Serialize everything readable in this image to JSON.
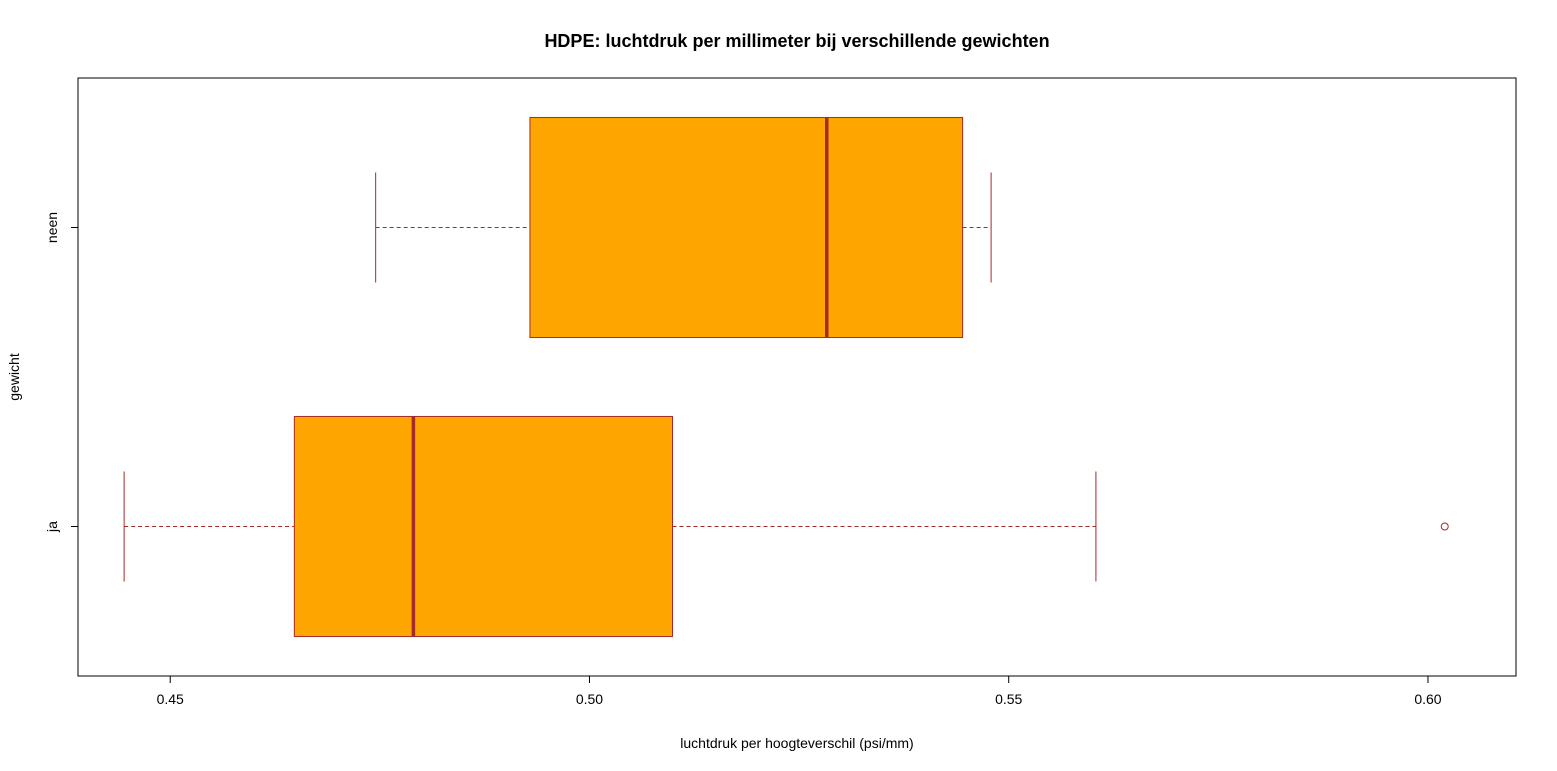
{
  "chart_data": {
    "type": "boxplot",
    "orientation": "horizontal",
    "title": "HDPE: luchtdruk per millimeter bij verschillende gewichten",
    "xlabel": "luchtdruk per hoogteverschil (psi/mm)",
    "ylabel": "gewicht",
    "xlim": [
      0.439,
      0.6105
    ],
    "xticks": [
      "0.45",
      "0.50",
      "0.55",
      "0.60"
    ],
    "categories": [
      "ja",
      "neen"
    ],
    "boxes": [
      {
        "category": "ja",
        "whisker_low": 0.4445,
        "q1": 0.4648,
        "median": 0.479,
        "q3": 0.5099,
        "whisker_high": 0.5604,
        "outliers": [
          0.602
        ]
      },
      {
        "category": "neen",
        "whisker_low": 0.4745,
        "q1": 0.4929,
        "median": 0.5283,
        "q3": 0.5445,
        "whisker_high": 0.5479,
        "outliers": []
      }
    ],
    "colors": {
      "box_fill": "#FFA500",
      "box_border": "#A52A2A"
    },
    "grid": false,
    "legend": "none"
  }
}
